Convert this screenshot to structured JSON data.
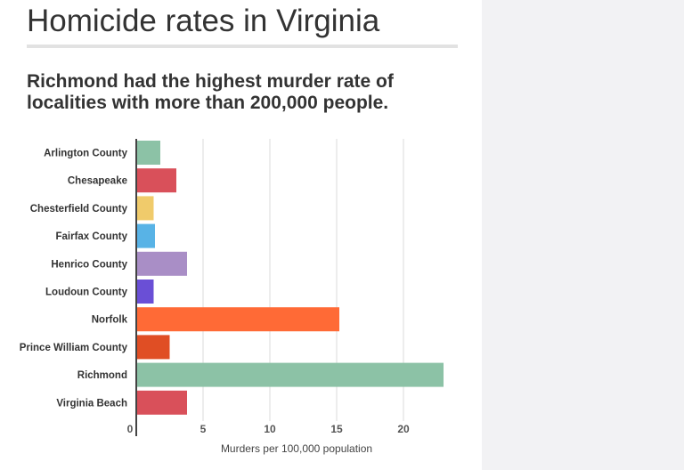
{
  "title": "Homicide rates in Virginia",
  "chart_data": {
    "type": "bar",
    "orientation": "horizontal",
    "title": "Richmond had the highest murder rate of localities with more than 200,000 people.",
    "xlabel": "Murders per 100,000 population",
    "ylabel": "",
    "xlim": [
      0,
      23.5
    ],
    "xticks": [
      0,
      5,
      10,
      15,
      20
    ],
    "grid": true,
    "categories": [
      "Arlington County",
      "Chesapeake",
      "Chesterfield County",
      "Fairfax County",
      "Henrico County",
      "Loudoun County",
      "Norfolk",
      "Prince William County",
      "Richmond",
      "Virginia Beach"
    ],
    "values": [
      1.8,
      3.0,
      1.3,
      1.4,
      3.8,
      1.3,
      15.2,
      2.5,
      23.0,
      3.8
    ],
    "colors": [
      "#8cc2a6",
      "#d9505a",
      "#f0cb6b",
      "#58b3e6",
      "#a98ec6",
      "#6a4fd6",
      "#ff6a36",
      "#e04e24",
      "#8cc2a6",
      "#d9505a"
    ]
  }
}
